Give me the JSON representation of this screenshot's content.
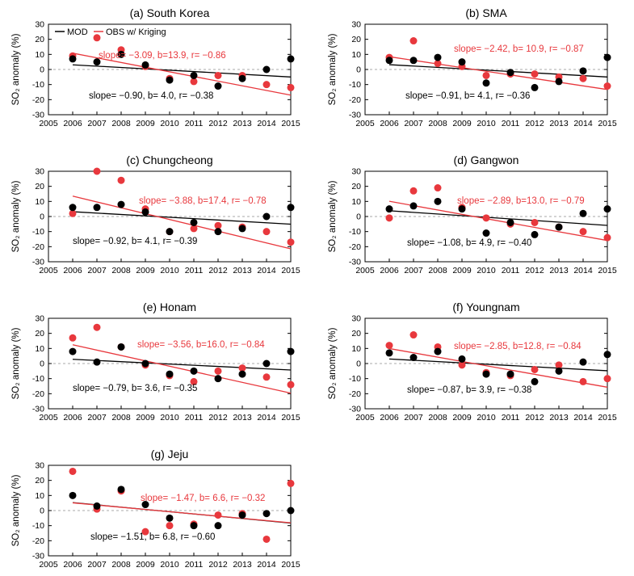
{
  "figure": {
    "colors": {
      "model": "#000000",
      "observation": "#e8383d",
      "zero_line": "#a8a8a8"
    }
  },
  "legend": {
    "model_label": "MOD",
    "obs_label": "OBS w/ Kriging"
  },
  "chart_data": [
    {
      "type": "scatter",
      "title": "(a) South Korea",
      "ylabel": "SO₂ anomaly (%)",
      "xlim": [
        2005,
        2015
      ],
      "ylim": [
        -30,
        30
      ],
      "x_ticks": [
        2005,
        2006,
        2007,
        2008,
        2009,
        2010,
        2011,
        2012,
        2013,
        2014,
        2015
      ],
      "y_ticks": [
        30,
        20,
        10,
        0,
        -10,
        -20,
        -30
      ],
      "x": [
        2006,
        2007,
        2008,
        2009,
        2010,
        2011,
        2012,
        2013,
        2014,
        2015
      ],
      "series": [
        {
          "name": "MOD",
          "values": [
            7,
            5,
            10,
            3,
            -7,
            -4,
            -11,
            -6,
            0,
            7
          ],
          "slope": -0.9,
          "intercept": 4.0,
          "annotation": "slope= −0.90, b= 4.0, r= −0.38"
        },
        {
          "name": "OBS w/ Kriging",
          "values": [
            9,
            21,
            13,
            2,
            -6,
            -8,
            -4,
            -4,
            -10,
            -12
          ],
          "slope": -3.09,
          "intercept": 13.9,
          "annotation": "slope= −3.09, b=13.9, r= −0.86"
        }
      ]
    },
    {
      "type": "scatter",
      "title": "(b) SMA",
      "ylabel": "SO₂ anomaly (%)",
      "xlim": [
        2005,
        2015
      ],
      "ylim": [
        -30,
        30
      ],
      "x_ticks": [
        2005,
        2006,
        2007,
        2008,
        2009,
        2010,
        2011,
        2012,
        2013,
        2014,
        2015
      ],
      "y_ticks": [
        30,
        20,
        10,
        0,
        -10,
        -20,
        -30
      ],
      "x": [
        2006,
        2007,
        2008,
        2009,
        2010,
        2011,
        2012,
        2013,
        2014,
        2015
      ],
      "series": [
        {
          "name": "MOD",
          "values": [
            6,
            6,
            8,
            5,
            -9,
            -2,
            -12,
            -8,
            -1,
            8
          ],
          "slope": -0.91,
          "intercept": 4.1,
          "annotation": "slope= −0.91, b= 4.1, r= −0.36"
        },
        {
          "name": "OBS w/ Kriging",
          "values": [
            8,
            19,
            4,
            2,
            -4,
            -3,
            -3,
            -5,
            -6,
            -11
          ],
          "slope": -2.42,
          "intercept": 10.9,
          "annotation": "slope= −2.42, b= 10.9, r= −0.87"
        }
      ]
    },
    {
      "type": "scatter",
      "title": "(c) Chungcheong",
      "ylabel": "SO₂ anomaly (%)",
      "xlim": [
        2005,
        2015
      ],
      "ylim": [
        -30,
        30
      ],
      "x_ticks": [
        2005,
        2006,
        2007,
        2008,
        2009,
        2010,
        2011,
        2012,
        2013,
        2014,
        2015
      ],
      "y_ticks": [
        30,
        20,
        10,
        0,
        -10,
        -20,
        -30
      ],
      "x": [
        2006,
        2007,
        2008,
        2009,
        2010,
        2011,
        2012,
        2013,
        2014,
        2015
      ],
      "series": [
        {
          "name": "MOD",
          "values": [
            6,
            6,
            8,
            3,
            -10,
            -4,
            -10,
            -8,
            0,
            6
          ],
          "slope": -0.92,
          "intercept": 4.1,
          "annotation": "slope= −0.92, b= 4.1, r= −0.39"
        },
        {
          "name": "OBS w/ Kriging",
          "values": [
            2,
            30,
            24,
            5,
            -10,
            -8,
            -6,
            -7,
            -10,
            -17
          ],
          "slope": -3.88,
          "intercept": 17.4,
          "annotation": "slope= −3.88, b=17.4, r= −0.78"
        }
      ]
    },
    {
      "type": "scatter",
      "title": "(d) Gangwon",
      "ylabel": "SO₂ anomaly (%)",
      "xlim": [
        2005,
        2015
      ],
      "ylim": [
        -30,
        30
      ],
      "x_ticks": [
        2005,
        2006,
        2007,
        2008,
        2009,
        2010,
        2011,
        2012,
        2013,
        2014,
        2015
      ],
      "y_ticks": [
        30,
        20,
        10,
        0,
        -10,
        -20,
        -30
      ],
      "x": [
        2006,
        2007,
        2008,
        2009,
        2010,
        2011,
        2012,
        2013,
        2014,
        2015
      ],
      "series": [
        {
          "name": "MOD",
          "values": [
            5,
            7,
            10,
            5,
            -11,
            -4,
            -12,
            -7,
            2,
            5
          ],
          "slope": -1.08,
          "intercept": 4.9,
          "annotation": "slope= −1.08, b= 4.9, r= −0.40"
        },
        {
          "name": "OBS w/ Kriging",
          "values": [
            -1,
            17,
            19,
            6,
            -1,
            -5,
            -4,
            -7,
            -10,
            -14
          ],
          "slope": -2.89,
          "intercept": 13.0,
          "annotation": "slope= −2.89, b=13.0, r= −0.79"
        }
      ]
    },
    {
      "type": "scatter",
      "title": "(e) Honam",
      "ylabel": "SO₂ anomaly (%)",
      "xlim": [
        2005,
        2015
      ],
      "ylim": [
        -30,
        30
      ],
      "x_ticks": [
        2005,
        2006,
        2007,
        2008,
        2009,
        2010,
        2011,
        2012,
        2013,
        2014,
        2015
      ],
      "y_ticks": [
        30,
        20,
        10,
        0,
        -10,
        -20,
        -30
      ],
      "x": [
        2006,
        2007,
        2008,
        2009,
        2010,
        2011,
        2012,
        2013,
        2014,
        2015
      ],
      "series": [
        {
          "name": "MOD",
          "values": [
            8,
            1,
            11,
            0,
            -7,
            -5,
            -10,
            -7,
            0,
            8
          ],
          "slope": -0.79,
          "intercept": 3.6,
          "annotation": "slope= −0.79, b= 3.6, r= −0.35"
        },
        {
          "name": "OBS w/ Kriging",
          "values": [
            17,
            24,
            11,
            -1,
            -8,
            -12,
            -5,
            -3,
            -9,
            -14
          ],
          "slope": -3.56,
          "intercept": 16.0,
          "annotation": "slope= −3.56, b=16.0, r= −0.84"
        }
      ]
    },
    {
      "type": "scatter",
      "title": "(f) Youngnam",
      "ylabel": "SO₂ anomaly (%)",
      "xlim": [
        2005,
        2015
      ],
      "ylim": [
        -30,
        30
      ],
      "x_ticks": [
        2005,
        2006,
        2007,
        2008,
        2009,
        2010,
        2011,
        2012,
        2013,
        2014,
        2015
      ],
      "y_ticks": [
        30,
        20,
        10,
        0,
        -10,
        -20,
        -30
      ],
      "x": [
        2006,
        2007,
        2008,
        2009,
        2010,
        2011,
        2012,
        2013,
        2014,
        2015
      ],
      "series": [
        {
          "name": "MOD",
          "values": [
            7,
            4,
            8,
            3,
            -7,
            -7,
            -12,
            -5,
            1,
            6
          ],
          "slope": -0.87,
          "intercept": 3.9,
          "annotation": "slope= −0.87, b= 3.9, r= −0.38"
        },
        {
          "name": "OBS w/ Kriging",
          "values": [
            12,
            19,
            11,
            -1,
            -6,
            -8,
            -4,
            -1,
            -12,
            -10
          ],
          "slope": -2.85,
          "intercept": 12.8,
          "annotation": "slope= −2.85, b=12.8, r= −0.84"
        }
      ]
    },
    {
      "type": "scatter",
      "title": "(g) Jeju",
      "ylabel": "SO₂ anomaly (%)",
      "xlim": [
        2005,
        2015
      ],
      "ylim": [
        -30,
        30
      ],
      "x_ticks": [
        2005,
        2006,
        2007,
        2008,
        2009,
        2010,
        2011,
        2012,
        2013,
        2014,
        2015
      ],
      "y_ticks": [
        30,
        20,
        10,
        0,
        -10,
        -20,
        -30
      ],
      "x": [
        2006,
        2007,
        2008,
        2009,
        2010,
        2011,
        2012,
        2013,
        2014,
        2015
      ],
      "series": [
        {
          "name": "MOD",
          "values": [
            10,
            3,
            14,
            4,
            -5,
            -10,
            -10,
            -3,
            -2,
            0
          ],
          "slope": -1.51,
          "intercept": 6.8,
          "annotation": "slope= −1.51, b= 6.8, r= −0.60"
        },
        {
          "name": "OBS w/ Kriging",
          "values": [
            26,
            1,
            13,
            -14,
            -10,
            -9,
            -3,
            -2,
            -19,
            18
          ],
          "slope": -1.47,
          "intercept": 6.6,
          "annotation": "slope= −1.47, b= 6.6, r= −0.32"
        }
      ]
    }
  ]
}
